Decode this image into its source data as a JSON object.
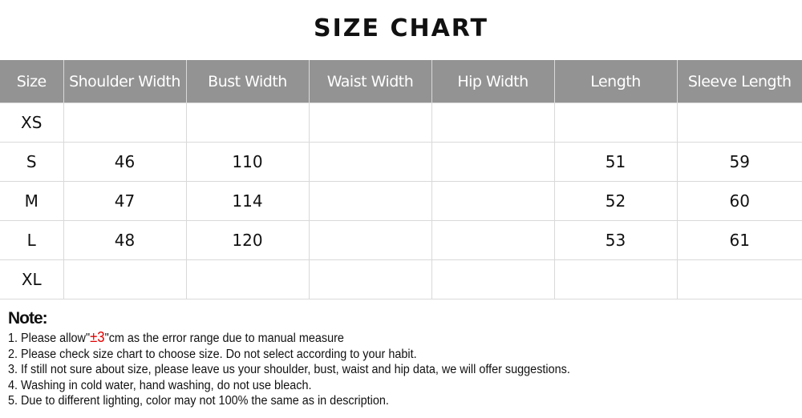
{
  "title": "SIZE CHART",
  "table": {
    "headers": [
      "Size",
      "Shoulder Width",
      "Bust Width",
      "Waist Width",
      "Hip Width",
      "Length",
      "Sleeve Length"
    ],
    "rows": [
      [
        "XS",
        "",
        "",
        "",
        "",
        "",
        ""
      ],
      [
        "S",
        "46",
        "110",
        "",
        "",
        "51",
        "59"
      ],
      [
        "M",
        "47",
        "114",
        "",
        "",
        "52",
        "60"
      ],
      [
        "L",
        "48",
        "120",
        "",
        "",
        "53",
        "61"
      ],
      [
        "XL",
        "",
        "",
        "",
        "",
        "",
        ""
      ]
    ]
  },
  "notes": {
    "heading": "Note:",
    "item1_before": "1. Please allow\"",
    "item1_highlight": "±3",
    "item1_after": "\"cm as the error range due to manual measure",
    "items": [
      "2. Please check size chart to choose size. Do not select according to your habit.",
      "3. If still not sure about size, please leave us your shoulder, bust, waist and hip data, we will offer suggestions.",
      "4. Washing in cold water, hand washing, do not use bleach.",
      "5. Due to different lighting, color may not 100% the same as in description."
    ],
    "highlight_color": "#e00000"
  },
  "colors": {
    "header_bg": "#939393",
    "grid": "#d9d9d9"
  }
}
